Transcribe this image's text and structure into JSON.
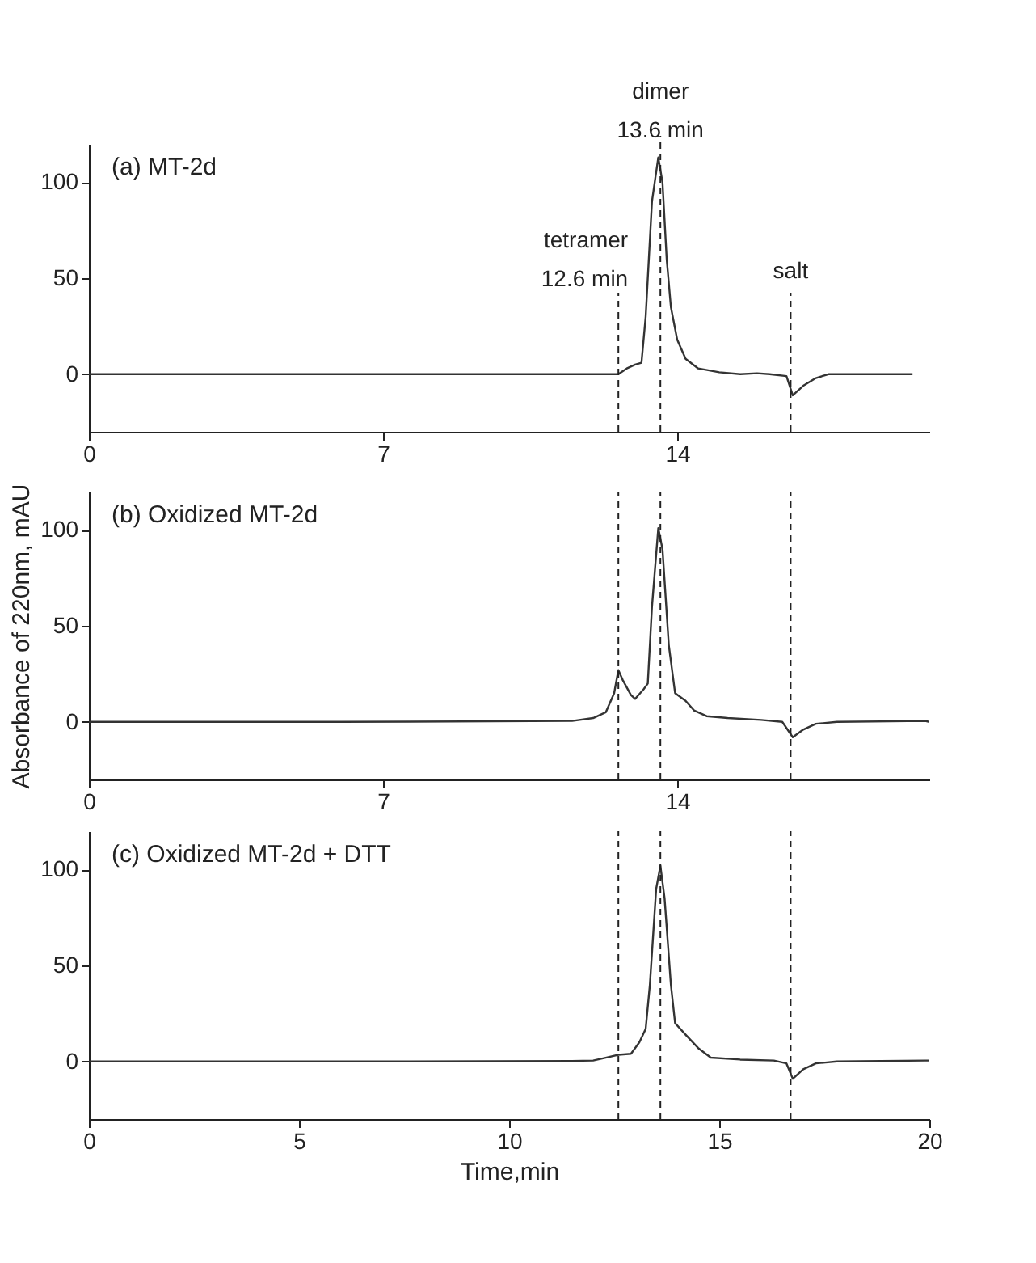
{
  "chart_data": [
    {
      "type": "line",
      "title": "(a)     MT-2d",
      "xlim": [
        0,
        20
      ],
      "xticks": [
        0,
        7,
        14
      ],
      "ylim": [
        -30,
        120
      ],
      "yticks": [
        0,
        50,
        100
      ],
      "series": [
        {
          "color": "#333333",
          "x": [
            0,
            6,
            10,
            12.5,
            12.6,
            12.8,
            13.0,
            13.15,
            13.25,
            13.4,
            13.55,
            13.65,
            13.75,
            13.85,
            14.0,
            14.2,
            14.5,
            15.0,
            15.5,
            15.9,
            16.2,
            16.6,
            16.75,
            17.0,
            17.3,
            17.6,
            19.0,
            19.6
          ],
          "values": [
            0,
            0,
            0,
            0,
            0,
            3,
            5,
            6,
            30,
            90,
            113,
            100,
            60,
            35,
            18,
            8,
            3,
            1,
            0,
            0.5,
            0,
            -1,
            -11,
            -6,
            -2,
            0,
            0,
            0
          ]
        }
      ],
      "ref_lines": [
        {
          "axis": "x",
          "value": 12.6,
          "label": "tetramer\n12.6 min",
          "line_style": "dashed"
        },
        {
          "axis": "x",
          "value": 13.6,
          "label": "dimer\n13.6 min",
          "line_style": "dashed"
        },
        {
          "axis": "x",
          "value": 16.7,
          "label": "salt",
          "line_style": "dashed"
        }
      ]
    },
    {
      "type": "line",
      "title": "(b)     Oxidized MT-2d",
      "ylabel": "Absorbance of 220nm, mAU",
      "xlim": [
        0,
        20
      ],
      "xticks": [
        0,
        7,
        14
      ],
      "ylim": [
        -30,
        120
      ],
      "yticks": [
        0,
        50,
        100
      ],
      "series": [
        {
          "color": "#333333",
          "x": [
            0,
            6,
            11.5,
            12.0,
            12.3,
            12.5,
            12.6,
            12.7,
            12.9,
            13.0,
            13.2,
            13.3,
            13.4,
            13.55,
            13.65,
            13.8,
            13.95,
            14.2,
            14.4,
            14.7,
            15.2,
            16.0,
            16.5,
            16.75,
            17.0,
            17.3,
            17.8,
            19.9,
            20
          ],
          "values": [
            0,
            0,
            0.5,
            2,
            5,
            15,
            27,
            22,
            14,
            12,
            17,
            20,
            60,
            101,
            90,
            40,
            15,
            11,
            6,
            3,
            2,
            1,
            0,
            -8,
            -4,
            -1,
            0,
            0.5,
            0
          ]
        }
      ],
      "ref_lines": [
        {
          "axis": "x",
          "value": 12.6,
          "line_style": "dashed"
        },
        {
          "axis": "x",
          "value": 13.6,
          "line_style": "dashed"
        },
        {
          "axis": "x",
          "value": 16.7,
          "line_style": "dashed"
        }
      ]
    },
    {
      "type": "line",
      "title": "(c)     Oxidized MT-2d + DTT",
      "xlabel": "Time,min",
      "xlim": [
        0,
        20
      ],
      "xticks": [
        0,
        5,
        10,
        15,
        20
      ],
      "ylim": [
        -30,
        120
      ],
      "yticks": [
        0,
        50,
        100
      ],
      "series": [
        {
          "color": "#333333",
          "x": [
            0,
            6,
            11.5,
            12.0,
            12.3,
            12.6,
            12.9,
            13.1,
            13.25,
            13.35,
            13.5,
            13.6,
            13.7,
            13.85,
            13.95,
            14.2,
            14.5,
            14.8,
            15.5,
            16.3,
            16.6,
            16.75,
            17.0,
            17.3,
            17.8,
            19.9,
            20
          ],
          "values": [
            0,
            0,
            0.3,
            0.5,
            2,
            3.5,
            4,
            10,
            17,
            40,
            90,
            102,
            85,
            40,
            20,
            14,
            7,
            2,
            1,
            0.5,
            -1,
            -9,
            -4,
            -1,
            0,
            0.5,
            0.5
          ]
        }
      ],
      "ref_lines": [
        {
          "axis": "x",
          "value": 12.6,
          "line_style": "dashed"
        },
        {
          "axis": "x",
          "value": 13.6,
          "line_style": "dashed"
        },
        {
          "axis": "x",
          "value": 16.7,
          "line_style": "dashed"
        }
      ]
    }
  ]
}
